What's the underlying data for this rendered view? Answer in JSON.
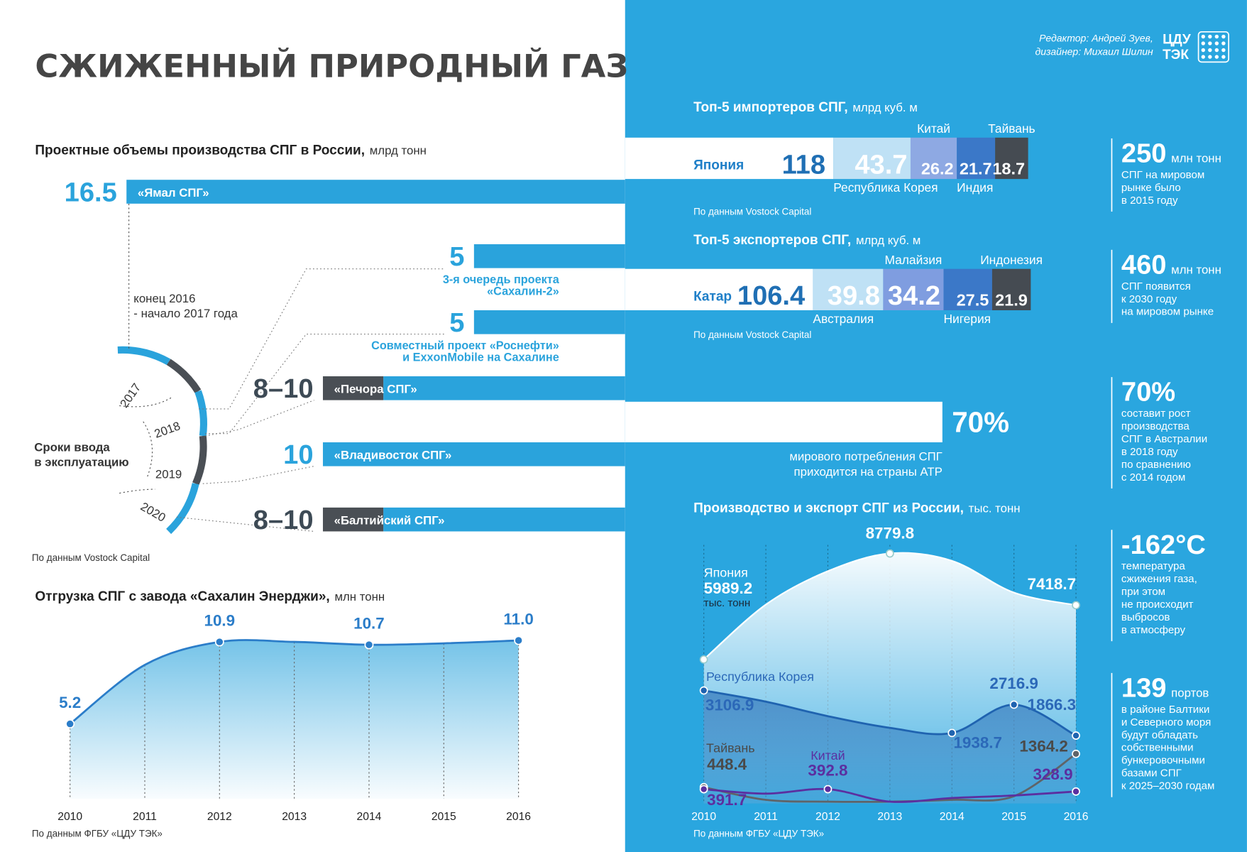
{
  "header": {
    "title": "СЖИЖЕННЫЙ ПРИРОДНЫЙ ГАЗ",
    "credits": [
      "Редактор: Андрей Зуев,",
      "дизайнер: Михаил Шилин"
    ],
    "logo": [
      "ЦДУ",
      "ТЭК"
    ]
  },
  "projects": {
    "title": "Проектные объемы производства СПГ в России,",
    "unit": "млрд тонн",
    "items": [
      {
        "value": 16.5,
        "name": [
          "«Ямал СПГ»"
        ]
      },
      {
        "value": 5,
        "name": [
          "3-я очередь проекта",
          "«Сахалин-2»"
        ]
      },
      {
        "value": 5,
        "name": [
          "Совместный проект «Роснефти»",
          "и ExxonMobile на Сахалине"
        ]
      },
      {
        "min": 8,
        "max": 10,
        "label": "8–10",
        "name": [
          "«Печора СПГ»"
        ]
      },
      {
        "value": 10,
        "name": [
          "«Владивосток СПГ»"
        ]
      },
      {
        "min": 8,
        "max": 10,
        "label": "8–10",
        "name": [
          "«Балтийский СПГ»"
        ]
      }
    ],
    "timeline": {
      "title": [
        "Сроки ввода",
        "в эксплуатацию"
      ],
      "start": [
        "конец 2016",
        "- начало 2017 года"
      ],
      "years": [
        "2017",
        "2018",
        "2019",
        "2020"
      ]
    },
    "source": "По данным Vostock Capital"
  },
  "share": {
    "value": 70,
    "label": "70%",
    "text": [
      "мирового потребления СПГ",
      "приходится на страны АТР"
    ]
  },
  "facts": [
    {
      "value": "250",
      "unit": "млн тонн",
      "text": [
        "СПГ на мировом",
        "рынке было",
        "в 2015 году"
      ]
    },
    {
      "value": "460",
      "unit": "млн тонн",
      "text": [
        "СПГ появится",
        "к 2030 году",
        "на мировом рынке"
      ]
    },
    {
      "value": "70%",
      "text": [
        "составит рост",
        "производства",
        "СПГ в Австралии",
        "в 2018 году",
        "по сравнению",
        "с 2014 годом"
      ]
    },
    {
      "value": "-162°C",
      "text": [
        "температура",
        "сжижения газа,",
        "при этом",
        "не происходит",
        "выбросов",
        "в атмосферу"
      ]
    },
    {
      "value": "139",
      "unit": "портов",
      "text": [
        "в районе Балтики",
        "и Северного моря",
        "будут обладать",
        "собственными",
        "бункеровочными",
        "базами СПГ",
        "к 2025–2030 годам"
      ]
    }
  ],
  "chart_data": [
    {
      "type": "line",
      "title": "Отгрузка СПГ с завода «Сахалин Энерджи»,",
      "unit": "млн тонн",
      "categories": [
        "2010",
        "2011",
        "2012",
        "2013",
        "2014",
        "2015",
        "2016"
      ],
      "values": [
        5.2,
        9.3,
        10.9,
        10.9,
        10.7,
        10.8,
        11.0
      ],
      "value_labels": [
        "5.2",
        null,
        "10.9",
        null,
        "10.7",
        null,
        "11.0"
      ],
      "color": "#2b7dc9",
      "ylim": [
        0,
        12
      ],
      "source": "По данным ФГБУ «ЦДУ ТЭК»"
    },
    {
      "type": "bar",
      "title": "Топ-5 импортеров СПГ,",
      "unit": "млрд куб. м",
      "categories": [
        "Япония",
        "Республика Корея",
        "Китай",
        "Индия",
        "Тайвань"
      ],
      "values": [
        118,
        43.7,
        26.2,
        21.7,
        18.7
      ],
      "colors": [
        "#ffffff",
        "#bfe1f5",
        "#8ea9e3",
        "#3b78c8",
        "#454b52"
      ],
      "source": "По данным Vostock Capital"
    },
    {
      "type": "bar",
      "title": "Топ-5 экспортеров СПГ,",
      "unit": "млрд куб. м",
      "categories": [
        "Катар",
        "Австралия",
        "Малайзия",
        "Нигерия",
        "Индонезия"
      ],
      "values": [
        106.4,
        39.8,
        34.2,
        27.5,
        21.9
      ],
      "colors": [
        "#ffffff",
        "#bfe1f5",
        "#7f9de0",
        "#3b78c8",
        "#454b52"
      ],
      "source": "По данным Vostock Capital"
    },
    {
      "type": "area",
      "title": "Производство и экспорт СПГ из России,",
      "unit": "тыс. тонн",
      "categories": [
        "2010",
        "2011",
        "2012",
        "2013",
        "2014",
        "2015",
        "2016"
      ],
      "ylim": [
        0,
        7000
      ],
      "y2lim": [
        2200,
        8900
      ],
      "series": [
        {
          "name": "Япония",
          "unit_label": "тыс. тонн",
          "color": "#ffffff",
          "axis": "y2",
          "values": [
            5989.2,
            7434,
            8314,
            8779.8,
            8586,
            7749,
            7418.7
          ]
        },
        {
          "name": "Республика Корея",
          "color": "#1f63b0",
          "values": [
            3106.9,
            2800,
            2400,
            2080,
            1938.7,
            2716.9,
            1866.3
          ]
        },
        {
          "name": "Тайвань",
          "color": "#5f6468",
          "values": [
            448.4,
            100,
            50,
            50,
            100,
            200,
            1364.2
          ]
        },
        {
          "name": "Китай",
          "color": "#5b2fa0",
          "values": [
            391.7,
            270,
            392.8,
            50,
            150,
            220,
            328.9
          ]
        }
      ],
      "source": "По данным ФГБУ «ЦДУ ТЭК»"
    }
  ]
}
